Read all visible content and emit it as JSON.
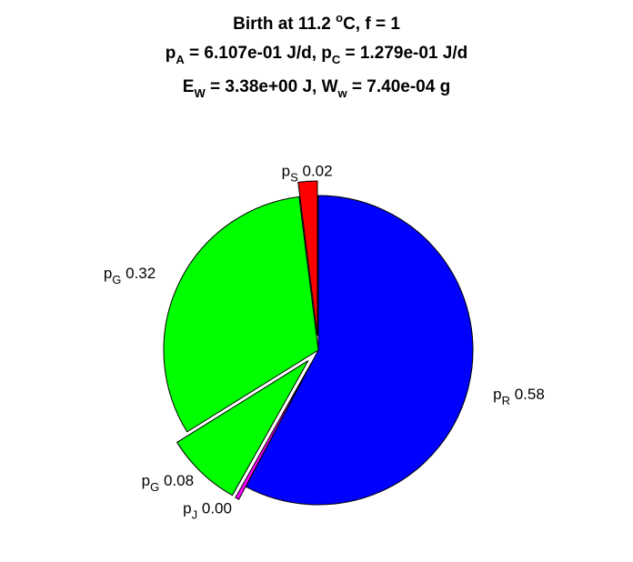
{
  "chart_data": {
    "type": "pie",
    "title": {
      "line1": {
        "pre": "Birth at 11.2 ",
        "sup": "o",
        "post": "C, f = 1"
      },
      "line2": [
        {
          "t": "p",
          "sub": "A"
        },
        {
          "t": " = 6.107e-01 J/d, "
        },
        {
          "t": "p",
          "sub": "C"
        },
        {
          "t": " = 1.279e-01 J/d"
        }
      ],
      "line3": [
        {
          "t": "E",
          "sub": "W"
        },
        {
          "t": " = 3.38e+00 J, "
        },
        {
          "t": "W",
          "sub": "w"
        },
        {
          "t": " = 7.40e-04 g"
        }
      ]
    },
    "slices": [
      {
        "symbol": "p",
        "sub": "R",
        "value_text": "0.58",
        "value": 0.58,
        "color": "#0000ff",
        "exploded": false
      },
      {
        "symbol": "p",
        "sub": "J",
        "value_text": "0.00",
        "value": 0.004,
        "color": "#ff00ff",
        "exploded": true
      },
      {
        "symbol": "p",
        "sub": "G",
        "value_text": "0.08",
        "value": 0.08,
        "color": "#00ff00",
        "exploded": true
      },
      {
        "symbol": "p",
        "sub": "G",
        "value_text": "0.32",
        "value": 0.32,
        "color": "#00ff00",
        "exploded": false
      },
      {
        "symbol": "p",
        "sub": "S",
        "value_text": "0.02",
        "value": 0.02,
        "color": "#ff0000",
        "exploded": true
      }
    ]
  }
}
